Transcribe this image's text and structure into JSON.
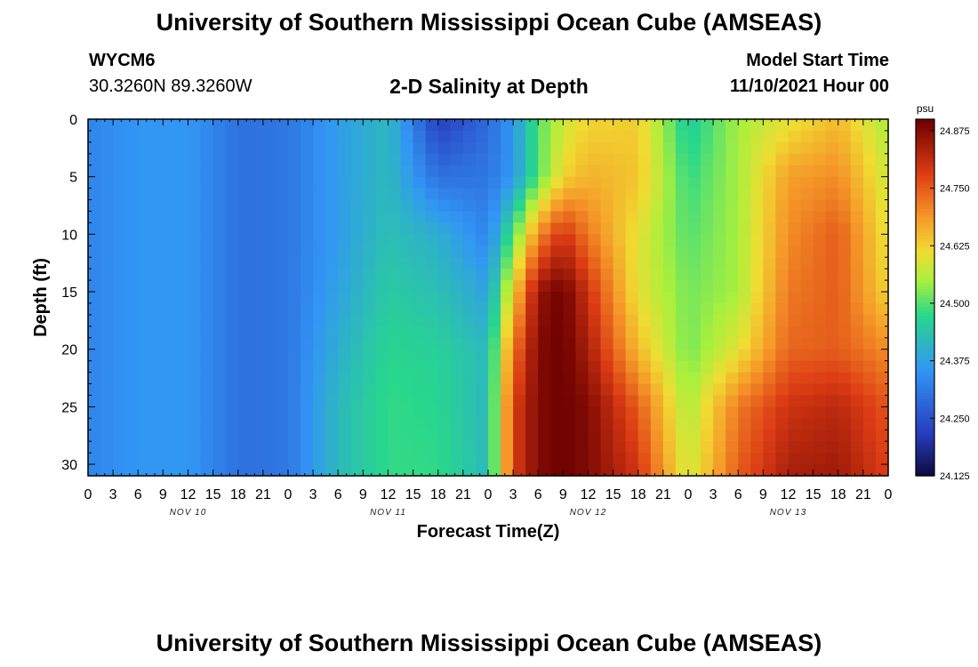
{
  "header": {
    "title": "University of Southern Mississippi Ocean Cube (AMSEAS)",
    "station": "WYCM6",
    "coordinates": "30.3260N  89.3260W",
    "subtitle": "2-D Salinity at Depth",
    "model_start_label": "Model Start Time",
    "model_start_value": "11/10/2021 Hour 00"
  },
  "footer": {
    "title": "University of Southern Mississippi Ocean Cube (AMSEAS)"
  },
  "chart_data": {
    "type": "heatmap",
    "title": "2-D Salinity at Depth",
    "xlabel": "Forecast Time(Z)",
    "ylabel": "Depth (ft)",
    "x_range_hours": [
      0,
      96
    ],
    "ylim": [
      31,
      0
    ],
    "y_ticks": [
      0,
      5,
      10,
      15,
      20,
      25,
      30
    ],
    "x_tick_labels": [
      "0",
      "3",
      "6",
      "9",
      "12",
      "15",
      "18",
      "21",
      "0",
      "3",
      "6",
      "9",
      "12",
      "15",
      "18",
      "21",
      "0",
      "3",
      "6",
      "9",
      "12",
      "15",
      "18",
      "21",
      "0",
      "3",
      "6",
      "9",
      "12",
      "15",
      "18",
      "21",
      "0"
    ],
    "day_labels": [
      {
        "text": "NOV 10",
        "hour": 12
      },
      {
        "text": "NOV 11",
        "hour": 36
      },
      {
        "text": "NOV 12",
        "hour": 60
      },
      {
        "text": "NOV 13",
        "hour": 84
      }
    ],
    "colorbar": {
      "unit": "psu",
      "min": 24.125,
      "max": 24.9,
      "tick_values": [
        24.125,
        24.25,
        24.375,
        24.5,
        24.625,
        24.75,
        24.875
      ],
      "tick_labels": [
        "24.125",
        "24.250",
        "24.375",
        "24.500",
        "24.625",
        "24.750",
        "24.875"
      ]
    },
    "grid_depths": [
      0,
      5,
      10,
      15,
      20,
      25,
      31
    ],
    "grid_hours": [
      0,
      6,
      12,
      18,
      24,
      30,
      36,
      42,
      48,
      51,
      54,
      57,
      60,
      66,
      72,
      78,
      84,
      90,
      96
    ],
    "salinity": [
      [
        24.33,
        24.36,
        24.36,
        24.3,
        24.31,
        24.37,
        24.42,
        24.22,
        24.29,
        24.36,
        24.5,
        24.58,
        24.62,
        24.63,
        24.45,
        24.55,
        24.6,
        24.65,
        24.55
      ],
      [
        24.33,
        24.36,
        24.36,
        24.3,
        24.31,
        24.37,
        24.42,
        24.3,
        24.31,
        24.36,
        24.5,
        24.62,
        24.66,
        24.64,
        24.48,
        24.55,
        24.68,
        24.7,
        24.58
      ],
      [
        24.33,
        24.36,
        24.36,
        24.3,
        24.31,
        24.37,
        24.43,
        24.4,
        24.33,
        24.5,
        24.7,
        24.8,
        24.72,
        24.6,
        24.5,
        24.55,
        24.7,
        24.75,
        24.6
      ],
      [
        24.33,
        24.36,
        24.36,
        24.3,
        24.31,
        24.38,
        24.45,
        24.43,
        24.38,
        24.62,
        24.86,
        24.9,
        24.8,
        24.6,
        24.52,
        24.55,
        24.72,
        24.75,
        24.62
      ],
      [
        24.33,
        24.36,
        24.36,
        24.3,
        24.31,
        24.4,
        24.47,
        24.46,
        24.42,
        24.72,
        24.88,
        24.9,
        24.84,
        24.65,
        24.52,
        24.6,
        24.74,
        24.75,
        24.7
      ],
      [
        24.33,
        24.36,
        24.36,
        24.3,
        24.31,
        24.42,
        24.48,
        24.47,
        24.42,
        24.78,
        24.88,
        24.9,
        24.88,
        24.75,
        24.55,
        24.72,
        24.8,
        24.82,
        24.76
      ],
      [
        24.33,
        24.36,
        24.36,
        24.3,
        24.31,
        24.42,
        24.48,
        24.48,
        24.42,
        24.78,
        24.88,
        24.9,
        24.88,
        24.8,
        24.58,
        24.75,
        24.84,
        24.85,
        24.78
      ]
    ]
  }
}
